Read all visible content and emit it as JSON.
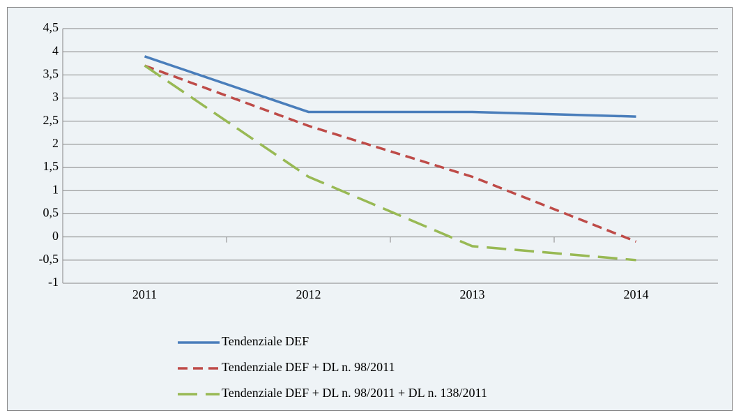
{
  "chart_data": {
    "type": "line",
    "categories": [
      "2011",
      "2012",
      "2013",
      "2014"
    ],
    "series": [
      {
        "name": "Tendenziale DEF",
        "color": "#4a7ebb",
        "dash": "solid",
        "values": [
          3.9,
          2.7,
          2.7,
          2.6
        ]
      },
      {
        "name": "Tendenziale DEF + DL n. 98/2011",
        "color": "#be4b48",
        "dash": "dashed",
        "values": [
          3.7,
          2.4,
          1.3,
          -0.1
        ]
      },
      {
        "name": "Tendenziale DEF + DL n. 98/2011 + DL n. 138/2011",
        "color": "#98b954",
        "dash": "longdash",
        "values": [
          3.7,
          1.3,
          -0.2,
          -0.5
        ]
      }
    ],
    "ylim": [
      -1,
      4.5
    ],
    "yticks": [
      -1,
      {
        "value": -0.5,
        "label": "-0,5"
      },
      0,
      {
        "value": 0.5,
        "label": "0,5"
      },
      1,
      {
        "value": 1.5,
        "label": "1,5"
      },
      2,
      {
        "value": 2.5,
        "label": "2,5"
      },
      3,
      {
        "value": 3.5,
        "label": "3,5"
      },
      4,
      {
        "value": 4.5,
        "label": "4,5"
      }
    ],
    "grid": true,
    "legend": "bottom"
  }
}
